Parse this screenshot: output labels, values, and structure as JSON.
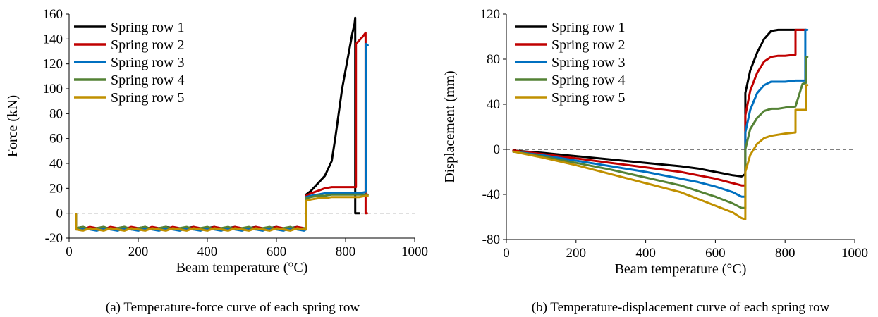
{
  "panels": [
    {
      "caption": "(a) Temperature-force curve of each spring row",
      "chart_data": {
        "type": "line",
        "xlabel": "Beam temperature (°C)",
        "ylabel": "Force (kN)",
        "xlim": [
          0,
          1000
        ],
        "ylim": [
          -20,
          160
        ],
        "xticks": [
          0,
          200,
          400,
          600,
          800,
          1000
        ],
        "yticks": [
          -20,
          0,
          20,
          40,
          60,
          80,
          100,
          120,
          140,
          160
        ],
        "reference_line": 0,
        "legend_position": "top-left",
        "series": [
          {
            "name": "Spring row 1",
            "color": "#000000",
            "x": [
              20,
              20,
              40,
              60,
              80,
              100,
              120,
              140,
              160,
              180,
              200,
              220,
              240,
              260,
              280,
              300,
              320,
              340,
              360,
              380,
              400,
              420,
              440,
              460,
              480,
              500,
              520,
              540,
              560,
              580,
              600,
              620,
              640,
              660,
              670,
              680,
              686,
              686,
              700,
              720,
              740,
              760,
              770,
              780,
              790,
              800,
              810,
              820,
              826,
              828,
              828,
              840
            ],
            "y": [
              -1,
              -12,
              -11,
              -13,
              -12,
              -11,
              -13,
              -12,
              -11,
              -13,
              -12,
              -11,
              -13,
              -12,
              -11,
              -12,
              -13,
              -12,
              -11,
              -13,
              -12,
              -11,
              -13,
              -12,
              -11,
              -13,
              -12,
              -11,
              -13,
              -12,
              -11,
              -13,
              -12,
              -11,
              -12,
              -13,
              -12,
              15,
              18,
              24,
              30,
              42,
              60,
              80,
              100,
              115,
              130,
              145,
              152,
              157,
              0,
              0
            ]
          },
          {
            "name": "Spring row 2",
            "color": "#c00000",
            "x": [
              20,
              20,
              40,
              60,
              80,
              100,
              120,
              140,
              160,
              180,
              200,
              220,
              240,
              260,
              280,
              300,
              320,
              340,
              360,
              380,
              400,
              420,
              440,
              460,
              480,
              500,
              520,
              540,
              560,
              580,
              600,
              620,
              640,
              660,
              680,
              686,
              686,
              700,
              720,
              740,
              760,
              780,
              800,
              820,
              830,
              830,
              840,
              850,
              858,
              858,
              862
            ],
            "y": [
              -1,
              -12,
              -13,
              -11,
              -12,
              -13,
              -11,
              -12,
              -13,
              -11,
              -12,
              -13,
              -11,
              -12,
              -13,
              -11,
              -12,
              -13,
              -11,
              -12,
              -13,
              -11,
              -12,
              -13,
              -11,
              -12,
              -13,
              -11,
              -12,
              -13,
              -11,
              -12,
              -13,
              -11,
              -12,
              -13,
              14,
              16,
              18,
              20,
              21,
              21,
              21,
              21,
              21,
              136,
              139,
              142,
              145,
              0,
              0
            ]
          },
          {
            "name": "Spring row 3",
            "color": "#0070c0",
            "x": [
              20,
              20,
              40,
              60,
              80,
              100,
              120,
              140,
              160,
              180,
              200,
              220,
              240,
              260,
              280,
              300,
              320,
              340,
              360,
              380,
              400,
              420,
              440,
              460,
              480,
              500,
              520,
              540,
              560,
              580,
              600,
              620,
              640,
              660,
              680,
              686,
              686,
              700,
              720,
              740,
              760,
              780,
              800,
              820,
              840,
              858,
              860,
              860,
              864
            ],
            "y": [
              -1,
              -13,
              -12,
              -13,
              -14,
              -12,
              -13,
              -14,
              -12,
              -13,
              -14,
              -12,
              -13,
              -14,
              -12,
              -13,
              -14,
              -12,
              -13,
              -14,
              -12,
              -13,
              -14,
              -12,
              -13,
              -14,
              -12,
              -13,
              -14,
              -12,
              -13,
              -14,
              -12,
              -13,
              -14,
              -13,
              13,
              14,
              15,
              16,
              16,
              16,
              16,
              16,
              16,
              17,
              20,
              136,
              135
            ]
          },
          {
            "name": "Spring row 4",
            "color": "#548235",
            "x": [
              20,
              20,
              40,
              60,
              80,
              100,
              120,
              140,
              160,
              180,
              200,
              220,
              240,
              260,
              280,
              300,
              320,
              340,
              360,
              380,
              400,
              420,
              440,
              460,
              480,
              500,
              520,
              540,
              560,
              580,
              600,
              620,
              640,
              660,
              680,
              686,
              686,
              700,
              720,
              740,
              760,
              780,
              800,
              820,
              840,
              860,
              864
            ],
            "y": [
              -1,
              -12,
              -11,
              -13,
              -12,
              -11,
              -13,
              -12,
              -11,
              -13,
              -12,
              -11,
              -13,
              -12,
              -11,
              -13,
              -12,
              -11,
              -13,
              -12,
              -11,
              -13,
              -12,
              -11,
              -13,
              -12,
              -11,
              -13,
              -12,
              -11,
              -13,
              -12,
              -11,
              -13,
              -12,
              -12,
              12,
              13,
              14,
              14,
              15,
              15,
              15,
              15,
              15,
              15,
              15
            ]
          },
          {
            "name": "Spring row 5",
            "color": "#c09000",
            "x": [
              20,
              20,
              40,
              60,
              80,
              100,
              120,
              140,
              160,
              180,
              200,
              220,
              240,
              260,
              280,
              300,
              320,
              340,
              360,
              380,
              400,
              420,
              440,
              460,
              480,
              500,
              520,
              540,
              560,
              580,
              600,
              620,
              640,
              660,
              680,
              686,
              686,
              700,
              720,
              740,
              760,
              780,
              800,
              820,
              840,
              860,
              864
            ],
            "y": [
              -1,
              -13,
              -14,
              -12,
              -13,
              -14,
              -12,
              -13,
              -14,
              -12,
              -13,
              -14,
              -12,
              -13,
              -14,
              -12,
              -13,
              -14,
              -12,
              -13,
              -14,
              -12,
              -13,
              -14,
              -12,
              -13,
              -14,
              -12,
              -13,
              -14,
              -12,
              -13,
              -14,
              -12,
              -13,
              -13,
              10,
              11,
              12,
              12,
              13,
              13,
              13,
              13,
              13,
              14,
              14
            ]
          }
        ]
      }
    },
    {
      "caption": "(b) Temperature-displacement curve of each spring row",
      "chart_data": {
        "type": "line",
        "xlabel": "Beam temperature (°C)",
        "ylabel": "Displacement (mm)",
        "xlim": [
          0,
          1000
        ],
        "ylim": [
          -80,
          120
        ],
        "xticks": [
          0,
          200,
          400,
          600,
          800,
          1000
        ],
        "yticks": [
          -80,
          -40,
          0,
          40,
          80,
          120
        ],
        "reference_line": 0,
        "legend_position": "top-left",
        "series": [
          {
            "name": "Spring row 1",
            "color": "#000000",
            "x": [
              20,
              100,
              200,
              300,
              400,
              500,
              550,
              600,
              650,
              675,
              686,
              686,
              700,
              720,
              740,
              760,
              780,
              800,
              830,
              860
            ],
            "y": [
              -1,
              -3,
              -6,
              -9,
              -12,
              -15,
              -17,
              -20,
              -23,
              -24,
              -22,
              50,
              70,
              86,
              98,
              105,
              106,
              106,
              106,
              106
            ]
          },
          {
            "name": "Spring row 2",
            "color": "#c00000",
            "x": [
              20,
              100,
              200,
              300,
              400,
              500,
              550,
              600,
              650,
              675,
              686,
              686,
              700,
              720,
              740,
              760,
              780,
              800,
              830,
              830,
              860
            ],
            "y": [
              -1,
              -4,
              -8,
              -12,
              -16,
              -20,
              -23,
              -26,
              -30,
              -32,
              -32,
              30,
              52,
              68,
              78,
              82,
              83,
              83,
              84,
              106,
              106
            ]
          },
          {
            "name": "Spring row 3",
            "color": "#0070c0",
            "x": [
              20,
              100,
              200,
              300,
              400,
              500,
              550,
              600,
              650,
              675,
              686,
              686,
              700,
              720,
              740,
              760,
              780,
              800,
              830,
              850,
              858,
              858,
              864
            ],
            "y": [
              -2,
              -5,
              -10,
              -15,
              -20,
              -26,
              -29,
              -33,
              -38,
              -42,
              -42,
              15,
              35,
              50,
              57,
              60,
              60,
              60,
              61,
              61,
              61,
              106,
              106
            ]
          },
          {
            "name": "Spring row 4",
            "color": "#548235",
            "x": [
              20,
              100,
              200,
              300,
              400,
              500,
              550,
              600,
              650,
              675,
              686,
              686,
              700,
              720,
              740,
              760,
              780,
              800,
              830,
              850,
              860,
              860,
              864
            ],
            "y": [
              -2,
              -6,
              -12,
              -18,
              -25,
              -32,
              -37,
              -42,
              -48,
              -52,
              -52,
              0,
              18,
              28,
              34,
              36,
              36,
              37,
              38,
              58,
              59,
              82,
              82
            ]
          },
          {
            "name": "Spring row 5",
            "color": "#c09000",
            "x": [
              20,
              100,
              200,
              300,
              400,
              500,
              550,
              600,
              650,
              675,
              686,
              686,
              700,
              720,
              740,
              760,
              780,
              800,
              830,
              830,
              860,
              860,
              864
            ],
            "y": [
              -2,
              -7,
              -14,
              -22,
              -30,
              -38,
              -44,
              -50,
              -56,
              -61,
              -62,
              -20,
              -5,
              5,
              10,
              12,
              13,
              14,
              15,
              35,
              35,
              57,
              57
            ]
          }
        ]
      }
    }
  ]
}
